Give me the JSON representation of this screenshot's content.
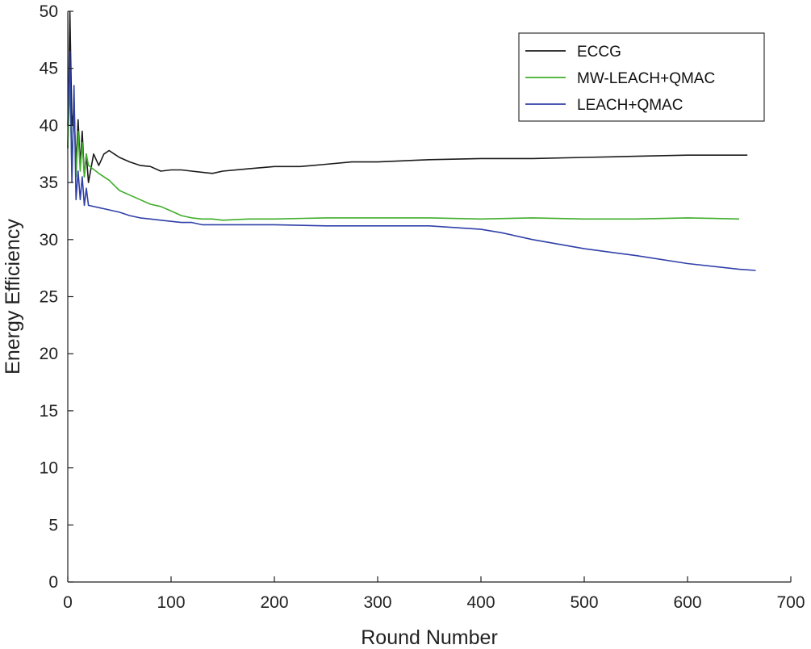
{
  "chart_data": {
    "type": "line",
    "title": "",
    "xlabel": "Round Number",
    "ylabel": "Energy Efficiency",
    "xlim": [
      0,
      700
    ],
    "ylim": [
      0,
      50
    ],
    "xticks": [
      0,
      100,
      200,
      300,
      400,
      500,
      600,
      700
    ],
    "yticks": [
      0,
      5,
      10,
      15,
      20,
      25,
      30,
      35,
      40,
      45,
      50
    ],
    "grid": false,
    "legend_position": "top-right",
    "series": [
      {
        "name": "ECCG",
        "color": "#1a1a1a",
        "x": [
          0,
          2,
          4,
          6,
          8,
          10,
          12,
          14,
          16,
          18,
          20,
          25,
          30,
          35,
          40,
          45,
          50,
          60,
          70,
          80,
          90,
          100,
          110,
          120,
          130,
          140,
          150,
          175,
          200,
          225,
          250,
          275,
          300,
          325,
          350,
          400,
          450,
          500,
          550,
          600,
          658
        ],
        "y": [
          38,
          50,
          40,
          41.5,
          36.5,
          40.5,
          36.5,
          39.5,
          35.5,
          37.5,
          35,
          37.5,
          36.5,
          37.5,
          37.8,
          37.5,
          37.2,
          36.8,
          36.5,
          36.4,
          36.0,
          36.1,
          36.1,
          36.0,
          35.9,
          35.8,
          36.0,
          36.2,
          36.4,
          36.4,
          36.6,
          36.8,
          36.8,
          36.9,
          37.0,
          37.1,
          37.1,
          37.2,
          37.3,
          37.4,
          37.4
        ]
      },
      {
        "name": "MW-LEACH+QMAC",
        "color": "#3fae2a",
        "x": [
          0,
          2,
          4,
          6,
          8,
          10,
          12,
          14,
          16,
          18,
          20,
          30,
          40,
          50,
          60,
          70,
          80,
          90,
          100,
          110,
          120,
          130,
          140,
          150,
          175,
          200,
          250,
          300,
          350,
          400,
          450,
          500,
          550,
          600,
          650
        ],
        "y": [
          38,
          44,
          36,
          42.5,
          35.5,
          39.5,
          36,
          38.5,
          35.5,
          37.5,
          36.5,
          35.8,
          35.2,
          34.3,
          33.9,
          33.5,
          33.1,
          32.9,
          32.5,
          32.1,
          31.9,
          31.8,
          31.8,
          31.7,
          31.8,
          31.8,
          31.9,
          31.9,
          31.9,
          31.8,
          31.9,
          31.8,
          31.8,
          31.9,
          31.8
        ]
      },
      {
        "name": "LEACH+QMAC",
        "color": "#3040a8",
        "x": [
          0,
          2,
          4,
          6,
          8,
          10,
          12,
          14,
          16,
          18,
          20,
          30,
          40,
          50,
          60,
          70,
          80,
          90,
          100,
          110,
          120,
          130,
          150,
          175,
          200,
          250,
          300,
          350,
          400,
          420,
          450,
          500,
          550,
          600,
          650,
          666
        ],
        "y": [
          40,
          46.5,
          35,
          43.5,
          33.5,
          36,
          33.5,
          35.5,
          33,
          34.5,
          33,
          32.8,
          32.6,
          32.4,
          32.1,
          31.9,
          31.8,
          31.7,
          31.6,
          31.5,
          31.5,
          31.3,
          31.3,
          31.3,
          31.3,
          31.2,
          31.2,
          31.2,
          30.9,
          30.6,
          30.0,
          29.2,
          28.6,
          27.9,
          27.4,
          27.3
        ]
      }
    ]
  }
}
